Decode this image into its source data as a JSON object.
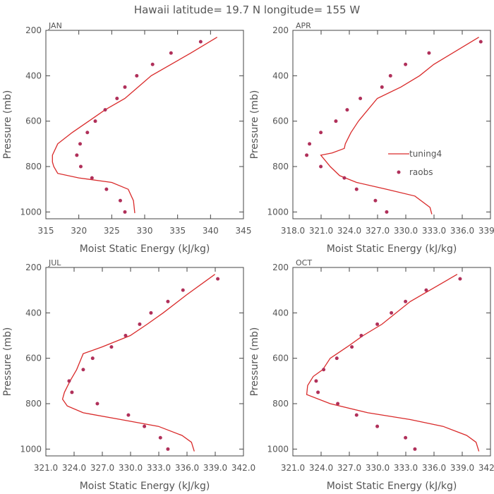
{
  "title": "Hawaii  latitude= 19.7 N longitude= 155 W",
  "colors": {
    "model": "#d92a2a",
    "obs": "#b0305a",
    "axis": "#444444",
    "text": "#555555"
  },
  "legend": {
    "model_label": "tuning4",
    "obs_label": "raobs",
    "panel_index": 1
  },
  "chart_data": [
    {
      "type": "line",
      "title": "JAN",
      "xlabel": "Moist Static Energy (kJ/kg)",
      "ylabel": "Pressure (mb)",
      "xlim": [
        315,
        345
      ],
      "ylim": [
        1030,
        200
      ],
      "xtick_values": [
        315,
        320,
        325,
        330,
        335,
        340,
        345
      ],
      "xtick_labels": [
        "315",
        "320",
        "325",
        "330",
        "335",
        "340",
        "345"
      ],
      "ytick_values": [
        200,
        400,
        600,
        800,
        1000
      ],
      "ytick_labels": [
        "200",
        "400",
        "600",
        "800",
        "1000"
      ],
      "series": [
        {
          "name": "tuning4",
          "kind": "line",
          "x": [
            328.5,
            328.3,
            327.5,
            325.0,
            320.0,
            316.8,
            316.2,
            316.0,
            316.0,
            316.8,
            319.0,
            321.5,
            324.0,
            327.0,
            331.0,
            337.0,
            341.0
          ],
          "y": [
            1005,
            950,
            900,
            870,
            850,
            830,
            800,
            780,
            750,
            700,
            650,
            600,
            550,
            500,
            400,
            300,
            230
          ]
        },
        {
          "name": "raobs",
          "kind": "scatter",
          "x": [
            327.0,
            326.3,
            324.2,
            322.0,
            320.3,
            319.7,
            320.2,
            321.3,
            322.5,
            324.0,
            325.8,
            327.0,
            328.8,
            331.2,
            334.0,
            338.5
          ],
          "y": [
            1000,
            950,
            900,
            850,
            800,
            750,
            700,
            650,
            600,
            550,
            500,
            450,
            400,
            350,
            300,
            250
          ]
        }
      ]
    },
    {
      "type": "line",
      "title": "APR",
      "xlabel": "Moist Static Energy (kJ/kg)",
      "ylabel": "Pressure (mb)",
      "xlim": [
        318.03,
        339.03
      ],
      "ylim": [
        1030,
        200
      ],
      "xtick_values": [
        318.03,
        321.03,
        324.03,
        327.03,
        330.03,
        333.03,
        336.03,
        339.03
      ],
      "xtick_labels": [
        "318.0",
        "321.0",
        "324.0",
        "327.0",
        "330.0",
        "333.0",
        "336.0",
        "339.0"
      ],
      "ytick_values": [
        200,
        400,
        600,
        800,
        1000
      ],
      "ytick_labels": [
        "200",
        "400",
        "600",
        "800",
        "1000"
      ],
      "series": [
        {
          "name": "tuning4",
          "kind": "line",
          "x": [
            332.8,
            332.6,
            331.0,
            328.0,
            324.8,
            323.0,
            322.0,
            321.6,
            321.0,
            322.2,
            323.5,
            323.6,
            324.2,
            325.0,
            327.0,
            329.5,
            331.5,
            333.0,
            337.8
          ],
          "y": [
            1010,
            980,
            930,
            900,
            870,
            840,
            800,
            780,
            750,
            740,
            720,
            700,
            650,
            600,
            500,
            450,
            400,
            350,
            230
          ]
        },
        {
          "name": "raobs",
          "kind": "scatter",
          "x": [
            328.0,
            326.8,
            324.8,
            323.5,
            321.0,
            319.5,
            319.8,
            321.0,
            322.6,
            323.8,
            325.2,
            327.5,
            328.4,
            330.0,
            332.5,
            338.0
          ],
          "y": [
            1000,
            950,
            900,
            850,
            800,
            750,
            700,
            650,
            600,
            550,
            500,
            450,
            400,
            350,
            300,
            250
          ]
        }
      ]
    },
    {
      "type": "line",
      "title": "JUL",
      "xlabel": "Moist Static Energy (kJ/kg)",
      "ylabel": "Pressure (mb)",
      "xlim": [
        321.03,
        342.03
      ],
      "ylim": [
        1030,
        200
      ],
      "xtick_values": [
        321.03,
        324.03,
        327.03,
        330.03,
        333.03,
        336.03,
        339.03,
        342.03
      ],
      "xtick_labels": [
        "321.0",
        "324.0",
        "327.0",
        "330.0",
        "333.0",
        "336.0",
        "339.0",
        "342.0"
      ],
      "ytick_values": [
        200,
        400,
        600,
        800,
        1000
      ],
      "ytick_labels": [
        "200",
        "400",
        "600",
        "800",
        "1000"
      ],
      "series": [
        {
          "name": "tuning4",
          "kind": "line",
          "x": [
            336.8,
            336.5,
            335.5,
            333.0,
            329.0,
            325.0,
            323.3,
            322.8,
            323.0,
            323.6,
            324.3,
            325.0,
            327.0,
            330.0,
            331.8,
            333.5,
            336.0,
            339.0
          ],
          "y": [
            1010,
            970,
            940,
            900,
            870,
            840,
            810,
            780,
            750,
            700,
            650,
            580,
            550,
            500,
            450,
            400,
            320,
            230
          ]
        },
        {
          "name": "raobs",
          "kind": "scatter",
          "x": [
            334.0,
            333.2,
            331.5,
            329.8,
            326.5,
            323.8,
            323.5,
            325.0,
            326.0,
            328.0,
            329.5,
            331.0,
            332.2,
            334.0,
            335.6,
            339.3
          ],
          "y": [
            1000,
            950,
            900,
            850,
            800,
            750,
            700,
            650,
            600,
            550,
            500,
            450,
            400,
            350,
            300,
            250
          ]
        }
      ]
    },
    {
      "type": "line",
      "title": "OCT",
      "xlabel": "Moist Static Energy (kJ/kg)",
      "ylabel": "Pressure (mb)",
      "xlim": [
        321.03,
        342.03
      ],
      "ylim": [
        1030,
        200
      ],
      "xtick_values": [
        321.03,
        324.03,
        327.03,
        330.03,
        333.03,
        336.03,
        339.03,
        342.03
      ],
      "xtick_labels": [
        "321.0",
        "324.0",
        "327.0",
        "330.0",
        "333.0",
        "336.0",
        "339.0",
        "342.0"
      ],
      "ytick_values": [
        200,
        400,
        600,
        800,
        1000
      ],
      "ytick_labels": [
        "200",
        "400",
        "600",
        "800",
        "1000"
      ],
      "series": [
        {
          "name": "tuning4",
          "kind": "line",
          "x": [
            340.8,
            340.5,
            339.5,
            337.0,
            333.5,
            329.0,
            325.0,
            322.5,
            322.6,
            323.2,
            324.2,
            325.0,
            326.8,
            328.5,
            330.5,
            333.5,
            338.5
          ],
          "y": [
            1010,
            970,
            940,
            900,
            870,
            840,
            800,
            760,
            720,
            680,
            650,
            600,
            550,
            500,
            450,
            350,
            230
          ]
        },
        {
          "name": "raobs",
          "kind": "scatter",
          "x": [
            334.0,
            333.0,
            330.0,
            327.8,
            325.8,
            323.7,
            323.5,
            324.3,
            325.7,
            327.3,
            328.3,
            330.0,
            331.5,
            333.0,
            335.2,
            338.8
          ],
          "y": [
            1000,
            950,
            900,
            850,
            800,
            750,
            700,
            650,
            600,
            550,
            500,
            450,
            400,
            350,
            300,
            250
          ]
        }
      ]
    }
  ]
}
